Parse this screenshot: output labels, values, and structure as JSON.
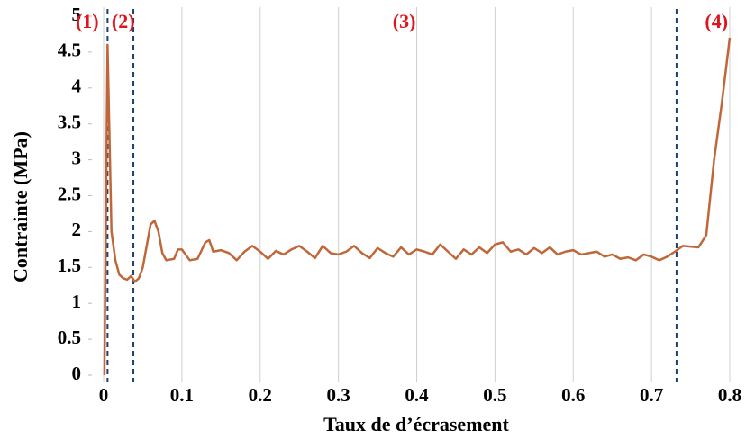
{
  "chart_data": {
    "type": "line",
    "xlabel": "Taux de d’écrasement",
    "ylabel": "Contrainte (MPa)",
    "xlim": [
      -0.015,
      0.8
    ],
    "ylim": [
      0,
      5
    ],
    "xticks": [
      0,
      0.1,
      0.2,
      0.3,
      0.4,
      0.5,
      0.6,
      0.7,
      0.8
    ],
    "yticks": [
      0,
      0.5,
      1,
      1.5,
      2,
      2.5,
      3,
      3.5,
      4,
      4.5,
      5
    ],
    "grid": "x",
    "series": [
      {
        "color": "#c0673a",
        "x": [
          0.001,
          0.005,
          0.01,
          0.015,
          0.02,
          0.025,
          0.03,
          0.035,
          0.04,
          0.045,
          0.05,
          0.055,
          0.06,
          0.065,
          0.07,
          0.075,
          0.08,
          0.09,
          0.095,
          0.1,
          0.11,
          0.12,
          0.13,
          0.135,
          0.14,
          0.15,
          0.16,
          0.17,
          0.18,
          0.19,
          0.2,
          0.21,
          0.22,
          0.23,
          0.24,
          0.25,
          0.26,
          0.27,
          0.28,
          0.29,
          0.3,
          0.31,
          0.32,
          0.33,
          0.34,
          0.35,
          0.36,
          0.37,
          0.38,
          0.39,
          0.4,
          0.41,
          0.42,
          0.43,
          0.44,
          0.45,
          0.46,
          0.47,
          0.48,
          0.49,
          0.5,
          0.51,
          0.52,
          0.53,
          0.54,
          0.55,
          0.56,
          0.57,
          0.58,
          0.59,
          0.6,
          0.61,
          0.62,
          0.63,
          0.64,
          0.65,
          0.66,
          0.67,
          0.68,
          0.69,
          0.7,
          0.71,
          0.72,
          0.73,
          0.74,
          0.76,
          0.77,
          0.78,
          0.79,
          0.8
        ],
        "values": [
          0,
          4.6,
          2.0,
          1.6,
          1.4,
          1.35,
          1.33,
          1.38,
          1.3,
          1.35,
          1.5,
          1.8,
          2.1,
          2.15,
          2.0,
          1.7,
          1.6,
          1.62,
          1.75,
          1.75,
          1.6,
          1.62,
          1.85,
          1.88,
          1.72,
          1.74,
          1.7,
          1.6,
          1.72,
          1.8,
          1.72,
          1.62,
          1.73,
          1.68,
          1.75,
          1.8,
          1.72,
          1.63,
          1.8,
          1.7,
          1.68,
          1.72,
          1.8,
          1.7,
          1.63,
          1.77,
          1.7,
          1.65,
          1.78,
          1.68,
          1.75,
          1.72,
          1.68,
          1.82,
          1.72,
          1.62,
          1.75,
          1.68,
          1.78,
          1.7,
          1.82,
          1.85,
          1.72,
          1.75,
          1.68,
          1.77,
          1.7,
          1.78,
          1.68,
          1.72,
          1.74,
          1.68,
          1.7,
          1.72,
          1.65,
          1.68,
          1.62,
          1.64,
          1.6,
          1.68,
          1.65,
          1.6,
          1.65,
          1.72,
          1.8,
          1.78,
          1.95,
          3.0,
          3.8,
          4.7
        ]
      }
    ],
    "dashed_lines": {
      "color": "#1f3f6e",
      "x": [
        0.005,
        0.038,
        0.732
      ]
    },
    "annotations": [
      {
        "text": "(1)",
        "x": -0.021,
        "y": 4.9
      },
      {
        "text": "(2)",
        "x": 0.025,
        "y": 4.9
      },
      {
        "text": "(3)",
        "x": 0.384,
        "y": 4.9
      },
      {
        "text": "(4)",
        "x": 0.783,
        "y": 4.9
      }
    ],
    "annotation_color": "#e0141e"
  }
}
